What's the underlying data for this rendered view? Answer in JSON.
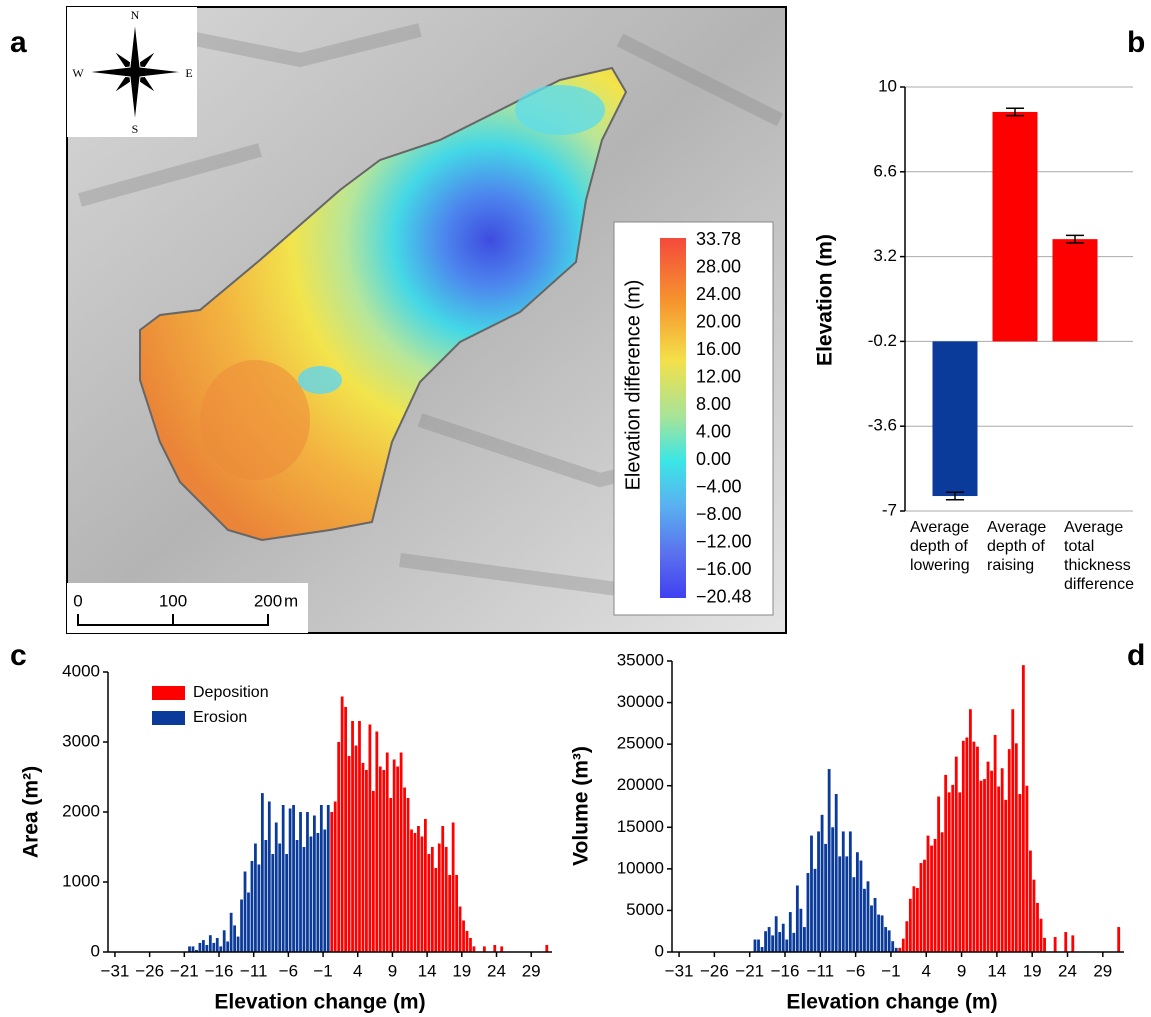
{
  "panel_labels": [
    "a",
    "b",
    "c",
    "d"
  ],
  "map": {
    "compass": {
      "north": "N",
      "south": "S",
      "west": "W",
      "east": "E"
    },
    "scale_bar": {
      "labels": [
        "0",
        "100",
        "200"
      ],
      "unit": "m"
    },
    "colorbar": {
      "title": "Elevation difference (m)",
      "labels": [
        "33.78",
        "28.00",
        "24.00",
        "20.00",
        "16.00",
        "12.00",
        "8.00",
        "4.00",
        "0.00",
        "−4.00",
        "−8.00",
        "−12.00",
        "−16.00",
        "−20.48"
      ]
    }
  },
  "chart_data": [
    {
      "type": "bar",
      "y_label": "Elevation (m)",
      "categories": [
        "Average depth of lowering",
        "Average depth of raising",
        "Average total thickness difference"
      ],
      "values": [
        -6.4,
        9.0,
        3.9
      ],
      "errors": [
        0.15,
        0.15,
        0.15
      ],
      "colors": [
        "#0a3a9a",
        "#ff0000",
        "#ff0000"
      ],
      "ylim": [
        -7,
        10
      ],
      "yticks": [
        -7,
        -3.6,
        -0.2,
        3.2,
        6.6,
        10
      ],
      "grid": true
    },
    {
      "type": "bar",
      "x_label": "Elevation change (m)",
      "y_label": "Area (m²)",
      "legend": "upper left",
      "series": [
        {
          "name": "Deposition",
          "color": "#ff0000",
          "x": [
            0.25,
            0.75,
            1.25,
            1.75,
            2.25,
            2.75,
            3.25,
            3.75,
            4.25,
            4.75,
            5.25,
            5.75,
            6.25,
            6.75,
            7.25,
            7.75,
            8.25,
            8.75,
            9.25,
            9.75,
            10.25,
            10.75,
            11.25,
            11.75,
            12.25,
            12.75,
            13.25,
            13.75,
            14.25,
            14.75,
            15.25,
            15.75,
            16.25,
            16.75,
            17.25,
            17.75,
            18.25,
            18.75,
            19.25,
            19.75,
            20.25,
            20.75,
            22.25,
            23.75,
            24.75,
            31.25
          ],
          "values": [
            2000,
            2150,
            3000,
            3650,
            3500,
            2800,
            3300,
            2950,
            3300,
            2700,
            2600,
            3250,
            2300,
            3150,
            2650,
            2600,
            2850,
            2200,
            2750,
            2650,
            2850,
            2350,
            2200,
            1750,
            1700,
            1800,
            1650,
            1900,
            1400,
            1500,
            1200,
            1550,
            1800,
            1500,
            1100,
            1850,
            1100,
            650,
            450,
            300,
            200,
            80,
            80,
            100,
            80,
            100
          ]
        },
        {
          "name": "Erosion",
          "color": "#0a3a9a",
          "x": [
            -20.25,
            -19.75,
            -19.25,
            -18.75,
            -18.25,
            -17.75,
            -17.25,
            -16.75,
            -16.25,
            -15.75,
            -15.25,
            -14.75,
            -14.25,
            -13.75,
            -13.25,
            -12.75,
            -12.25,
            -11.75,
            -11.25,
            -10.75,
            -10.25,
            -9.75,
            -9.25,
            -8.75,
            -8.25,
            -7.75,
            -7.25,
            -6.75,
            -6.25,
            -5.75,
            -5.25,
            -4.75,
            -4.25,
            -3.75,
            -3.25,
            -2.75,
            -2.25,
            -1.75,
            -1.25,
            -0.75,
            -0.25
          ],
          "values": [
            80,
            80,
            30,
            130,
            170,
            100,
            240,
            130,
            200,
            80,
            310,
            150,
            560,
            380,
            220,
            750,
            1150,
            850,
            1300,
            1550,
            1250,
            2270,
            1600,
            2150,
            1400,
            1850,
            1550,
            2100,
            1400,
            2050,
            2100,
            1600,
            2000,
            1500,
            2000,
            1650,
            1950,
            1700,
            2100,
            1750,
            2100
          ]
        }
      ],
      "xlim": [
        -32,
        32
      ],
      "xticks": [
        {
          "value": -31,
          "label": "−31"
        },
        {
          "value": -26,
          "label": "−26"
        },
        {
          "value": -21,
          "label": "−21"
        },
        {
          "value": -16,
          "label": "−16"
        },
        {
          "value": -11,
          "label": "−11"
        },
        {
          "value": -6,
          "label": "−6"
        },
        {
          "value": -1,
          "label": "−1"
        },
        4,
        9,
        14,
        19,
        24,
        29
      ],
      "ylim": [
        0,
        4000
      ],
      "yticks": [
        0,
        1000,
        2000,
        3000,
        4000
      ]
    },
    {
      "type": "bar",
      "x_label": "Elevation change (m)",
      "y_label": "Volume (m³)",
      "series": [
        {
          "color": "#ff0000",
          "x": [
            0.25,
            0.75,
            1.25,
            1.75,
            2.25,
            2.75,
            3.25,
            3.75,
            4.25,
            4.75,
            5.25,
            5.75,
            6.25,
            6.75,
            7.25,
            7.75,
            8.25,
            8.75,
            9.25,
            9.75,
            10.25,
            10.75,
            11.25,
            11.75,
            12.25,
            12.75,
            13.25,
            13.75,
            14.25,
            14.75,
            15.25,
            15.75,
            16.25,
            16.75,
            17.25,
            17.75,
            18.25,
            18.75,
            19.25,
            19.75,
            20.25,
            20.75,
            22.25,
            23.75,
            24.75,
            31.25
          ],
          "values": [
            500,
            1600,
            3700,
            6400,
            7900,
            7700,
            10700,
            11100,
            14000,
            12800,
            13600,
            18700,
            14400,
            21300,
            19200,
            20100,
            23500,
            19200,
            25400,
            25800,
            29200,
            25300,
            24700,
            20600,
            20800,
            22900,
            21800,
            26100,
            19900,
            22100,
            18300,
            24400,
            29200,
            25100,
            19000,
            34500,
            20000,
            12200,
            8700,
            5900,
            4000,
            1700,
            1800,
            2400,
            2000,
            3000
          ]
        },
        {
          "color": "#0a3a9a",
          "x": [
            -20.25,
            -19.75,
            -19.25,
            -18.75,
            -18.25,
            -17.75,
            -17.25,
            -16.75,
            -16.25,
            -15.75,
            -15.25,
            -14.75,
            -14.25,
            -13.75,
            -13.25,
            -12.75,
            -12.25,
            -11.75,
            -11.25,
            -10.75,
            -10.25,
            -9.75,
            -9.25,
            -8.75,
            -8.25,
            -7.75,
            -7.25,
            -6.75,
            -6.25,
            -5.75,
            -5.25,
            -4.75,
            -4.25,
            -3.75,
            -3.25,
            -2.75,
            -2.25,
            -1.75,
            -1.25,
            -0.75,
            -0.25
          ],
          "values": [
            1500,
            1500,
            600,
            2500,
            3000,
            2000,
            4300,
            2400,
            3400,
            1500,
            4800,
            2300,
            8000,
            5200,
            3000,
            9500,
            14000,
            10000,
            14500,
            16500,
            13000,
            22000,
            15000,
            19000,
            11500,
            14500,
            11500,
            14500,
            9000,
            12000,
            11000,
            7600,
            8500,
            5600,
            6500,
            4500,
            4400,
            3000,
            2600,
            1300,
            500
          ]
        }
      ],
      "xlim": [
        -32,
        32
      ],
      "xticks": [
        {
          "value": -31,
          "label": "−31"
        },
        {
          "value": -26,
          "label": "−26"
        },
        {
          "value": -21,
          "label": "−21"
        },
        {
          "value": -16,
          "label": "−16"
        },
        {
          "value": -11,
          "label": "−11"
        },
        {
          "value": -6,
          "label": "−6"
        },
        {
          "value": -1,
          "label": "−1"
        },
        4,
        9,
        14,
        19,
        24,
        29
      ],
      "ylim": [
        0,
        35000
      ],
      "yticks": [
        0,
        5000,
        10000,
        15000,
        20000,
        25000,
        30000,
        35000
      ]
    }
  ]
}
